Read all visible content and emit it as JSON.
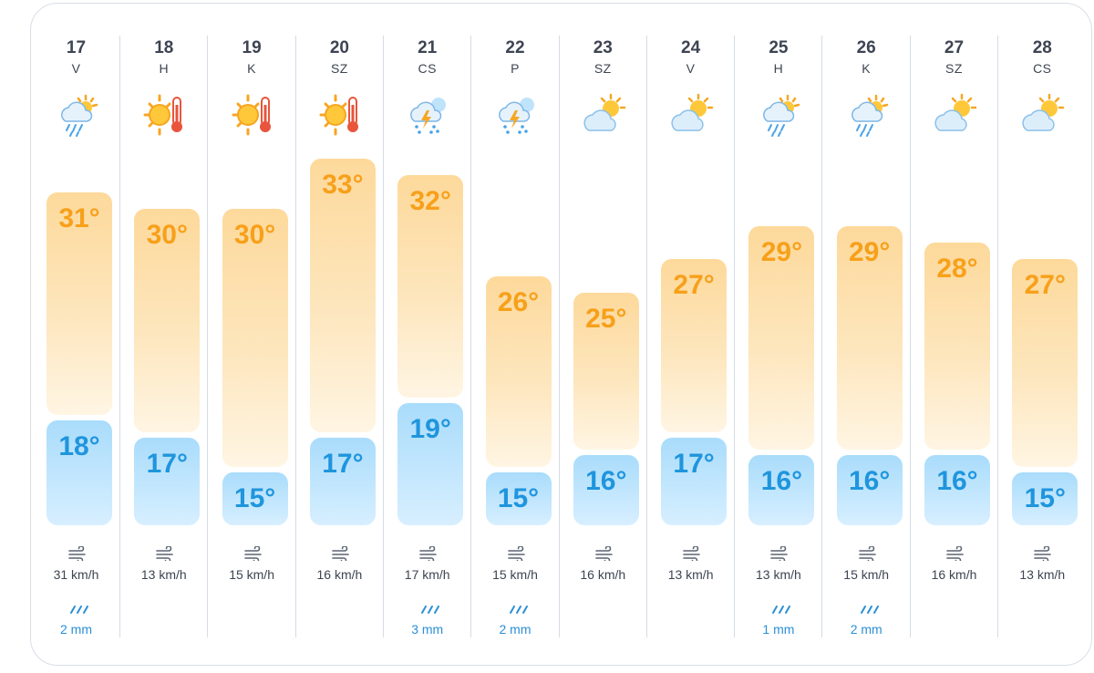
{
  "forecast": {
    "days": [
      {
        "day": "17",
        "weekday": "V",
        "icon": "rain-cloud-sun-icon",
        "high": "31°",
        "low": "18°",
        "high_c": 31,
        "low_c": 18,
        "wind": "31 km/h",
        "rain": "2 mm"
      },
      {
        "day": "18",
        "weekday": "H",
        "icon": "hot-sun-thermometer-icon",
        "high": "30°",
        "low": "17°",
        "high_c": 30,
        "low_c": 17,
        "wind": "13 km/h",
        "rain": ""
      },
      {
        "day": "19",
        "weekday": "K",
        "icon": "hot-sun-thermometer-icon",
        "high": "30°",
        "low": "15°",
        "high_c": 30,
        "low_c": 15,
        "wind": "15 km/h",
        "rain": ""
      },
      {
        "day": "20",
        "weekday": "SZ",
        "icon": "hot-sun-thermometer-icon",
        "high": "33°",
        "low": "17°",
        "high_c": 33,
        "low_c": 17,
        "wind": "16 km/h",
        "rain": ""
      },
      {
        "day": "21",
        "weekday": "CS",
        "icon": "thunderstorm-icon",
        "high": "32°",
        "low": "19°",
        "high_c": 32,
        "low_c": 19,
        "wind": "17 km/h",
        "rain": "3 mm"
      },
      {
        "day": "22",
        "weekday": "P",
        "icon": "thunderstorm-icon",
        "high": "26°",
        "low": "15°",
        "high_c": 26,
        "low_c": 15,
        "wind": "15 km/h",
        "rain": "2 mm"
      },
      {
        "day": "23",
        "weekday": "SZ",
        "icon": "partly-cloudy-icon",
        "high": "25°",
        "low": "16°",
        "high_c": 25,
        "low_c": 16,
        "wind": "16 km/h",
        "rain": ""
      },
      {
        "day": "24",
        "weekday": "V",
        "icon": "partly-cloudy-icon",
        "high": "27°",
        "low": "17°",
        "high_c": 27,
        "low_c": 17,
        "wind": "13 km/h",
        "rain": ""
      },
      {
        "day": "25",
        "weekday": "H",
        "icon": "rain-cloud-sun-icon",
        "high": "29°",
        "low": "16°",
        "high_c": 29,
        "low_c": 16,
        "wind": "13 km/h",
        "rain": "1 mm"
      },
      {
        "day": "26",
        "weekday": "K",
        "icon": "rain-cloud-sun-icon",
        "high": "29°",
        "low": "16°",
        "high_c": 29,
        "low_c": 16,
        "wind": "15 km/h",
        "rain": "2 mm"
      },
      {
        "day": "27",
        "weekday": "SZ",
        "icon": "partly-cloudy-icon",
        "high": "28°",
        "low": "16°",
        "high_c": 28,
        "low_c": 16,
        "wind": "16 km/h",
        "rain": ""
      },
      {
        "day": "28",
        "weekday": "CS",
        "icon": "partly-cloudy-icon",
        "high": "27°",
        "low": "15°",
        "high_c": 27,
        "low_c": 15,
        "wind": "13 km/h",
        "rain": ""
      }
    ]
  },
  "colors": {
    "high_text": "#f7a01a",
    "low_text": "#1f95dd",
    "rain_text": "#2b8fd6",
    "label_text": "#3d4452"
  }
}
